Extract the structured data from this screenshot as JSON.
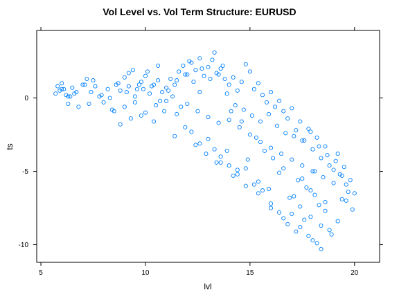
{
  "chart_data": {
    "type": "scatter",
    "title": "Vol Level vs. Vol Term Structure: EURUSD",
    "xlabel": "lvl",
    "ylabel": "ts",
    "xlim": [
      4.8,
      21.2
    ],
    "ylim": [
      -11.2,
      4.6
    ],
    "x_ticks": [
      5,
      10,
      15,
      20
    ],
    "y_ticks": [
      -10,
      -5,
      0
    ],
    "point_color": "#0080ff",
    "grid": false,
    "series": [
      {
        "x": [
          5.7,
          5.8,
          5.9,
          6.0,
          6.1,
          6.2,
          6.3,
          6.4,
          6.5,
          6.6,
          6.8,
          7.0,
          7.2,
          7.4,
          7.5,
          7.6,
          7.8,
          8.0,
          8.2,
          8.4,
          8.6,
          8.8,
          9.0,
          9.2,
          9.4,
          9.6,
          9.8,
          10.0,
          10.2,
          10.4,
          10.6,
          10.8,
          11.0,
          11.2,
          11.4,
          11.6,
          11.8,
          12.0,
          12.2,
          12.4,
          12.6,
          12.8,
          13.0,
          13.2,
          13.4,
          13.6,
          13.8,
          14.0,
          14.2,
          14.4,
          14.6,
          14.8,
          15.0,
          15.2,
          15.4,
          15.6,
          15.8,
          16.0,
          16.2,
          16.4,
          16.6,
          16.8,
          17.0,
          17.2,
          17.4,
          17.6,
          17.8,
          18.0,
          18.2,
          18.4,
          18.6,
          18.8,
          19.0,
          19.2,
          19.4,
          19.6,
          19.8,
          6.0,
          6.3,
          6.7,
          7.1,
          7.3,
          7.9,
          8.3,
          8.7,
          9.1,
          9.5,
          9.9,
          10.3,
          10.7,
          11.1,
          11.5,
          11.9,
          12.3,
          12.7,
          13.1,
          13.5,
          13.9,
          14.3,
          14.7,
          15.1,
          15.5,
          15.9,
          16.3,
          16.7,
          17.1,
          17.5,
          17.9,
          18.3,
          18.7,
          19.1,
          19.5,
          8.5,
          9.0,
          9.5,
          10.0,
          10.5,
          11.0,
          11.5,
          12.0,
          12.5,
          13.0,
          13.5,
          14.0,
          14.5,
          15.0,
          15.5,
          16.0,
          16.5,
          17.0,
          17.5,
          18.0,
          18.5,
          19.0,
          9.2,
          9.7,
          10.1,
          10.6,
          11.3,
          11.7,
          12.1,
          12.6,
          13.3,
          13.7,
          14.1,
          14.6,
          15.3,
          15.7,
          16.1,
          16.6,
          17.3,
          17.7,
          18.1,
          18.6,
          19.3,
          19.7,
          8.8,
          9.3,
          9.8,
          10.4,
          10.9,
          11.4,
          11.9,
          12.4,
          12.9,
          13.4,
          13.9,
          14.4,
          14.9,
          15.4,
          15.9,
          16.4,
          16.9,
          17.4,
          17.9,
          18.4,
          18.9,
          19.4,
          19.9,
          12.2,
          12.6,
          13.0,
          13.3,
          13.6,
          14.0,
          14.4,
          14.8,
          15.2,
          15.6,
          16.0,
          16.4,
          16.8,
          17.2,
          17.6,
          18.0,
          18.4,
          18.8,
          19.2,
          19.6,
          20.0,
          13.6,
          14.2,
          14.8,
          15.4,
          16.0,
          16.6,
          17.0,
          17.4,
          17.8,
          18.2,
          18.6,
          17.1,
          17.5,
          17.9,
          18.3,
          18.1
        ],
        "y": [
          0.3,
          0.8,
          0.5,
          1.0,
          0.6,
          0.2,
          -0.4,
          0.1,
          0.7,
          0.3,
          -0.6,
          0.9,
          1.3,
          0.4,
          1.2,
          0.8,
          0.1,
          -0.3,
          0.6,
          -0.8,
          0.9,
          0.5,
          1.4,
          0.8,
          1.9,
          0.6,
          1.1,
          1.5,
          0.3,
          0.9,
          1.2,
          0.4,
          0.7,
          1.3,
          0.9,
          1.8,
          2.2,
          1.6,
          2.4,
          1.9,
          2.7,
          1.5,
          2.1,
          2.6,
          1.7,
          2.0,
          1.3,
          0.9,
          1.4,
          0.5,
          1.1,
          2.3,
          1.8,
          0.6,
          1.0,
          0.2,
          -0.3,
          0.4,
          -0.6,
          -0.2,
          -0.9,
          -1.4,
          -0.7,
          -2.2,
          -1.6,
          -2.9,
          -2.1,
          -3.5,
          -2.7,
          -4.1,
          -3.3,
          -4.6,
          -4.9,
          -3.8,
          -5.3,
          -5.9,
          -5.6,
          0.6,
          0.1,
          0.4,
          0.9,
          -0.4,
          0.2,
          0.0,
          1.0,
          0.4,
          0.1,
          0.6,
          0.8,
          -0.2,
          0.5,
          1.2,
          1.6,
          1.1,
          2.0,
          1.3,
          1.6,
          0.3,
          -0.5,
          -0.8,
          -1.2,
          -1.6,
          -1.1,
          -1.9,
          -2.4,
          -2.6,
          -2.9,
          -2.3,
          -3.3,
          -3.9,
          -4.3,
          -4.7,
          -0.9,
          -0.6,
          -0.3,
          -1.0,
          -0.5,
          -0.2,
          -1.1,
          -0.4,
          -0.9,
          -1.3,
          -1.7,
          -1.5,
          -2.0,
          -2.5,
          -3.0,
          -3.4,
          -3.8,
          -4.2,
          -4.6,
          -5.0,
          -5.4,
          -5.8,
          1.7,
          0.9,
          1.8,
          2.2,
          0.1,
          -0.6,
          2.5,
          0.4,
          3.1,
          2.2,
          -0.9,
          -1.6,
          -2.7,
          -3.6,
          -4.1,
          -4.8,
          -5.6,
          -6.1,
          -6.6,
          -7.1,
          -5.2,
          -6.4,
          -1.8,
          -1.4,
          -1.2,
          -1.6,
          -0.9,
          -2.6,
          -2.0,
          -3.2,
          -3.8,
          -4.4,
          -3.6,
          -4.9,
          -4.2,
          -5.7,
          -6.2,
          -5.1,
          -6.8,
          -7.4,
          -8.1,
          -8.7,
          -9.3,
          -6.9,
          -7.6,
          -2.3,
          -3.1,
          -2.8,
          -3.5,
          -4.0,
          -4.6,
          -5.2,
          -4.8,
          -5.9,
          -6.3,
          -7.2,
          -7.8,
          -8.6,
          -9.1,
          -8.3,
          -9.7,
          -10.3,
          -9.0,
          -8.4,
          -7.0,
          -6.5,
          -4.4,
          -5.3,
          -6.0,
          -6.5,
          -7.5,
          -8.2,
          -7.9,
          -8.8,
          -9.4,
          -9.9,
          -7.7,
          -6.7,
          -5.5,
          -6.3,
          -7.3,
          -5.0
        ]
      }
    ]
  }
}
